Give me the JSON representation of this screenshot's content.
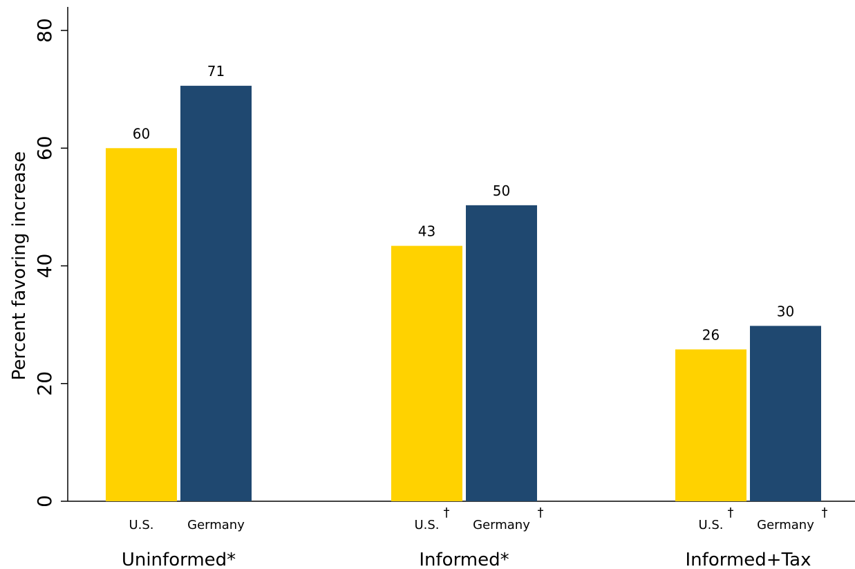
{
  "chart_data": {
    "type": "bar",
    "ylabel": "Percent favoring increase",
    "ylim": [
      0,
      84
    ],
    "yticks": [
      0,
      20,
      40,
      60,
      80
    ],
    "grid": false,
    "legend": "none",
    "groups": [
      {
        "label": "Uninformed*",
        "bars": [
          {
            "label": "U.S.",
            "dagger": "",
            "value": 60,
            "value_label": "60"
          },
          {
            "label": "Germany",
            "dagger": "",
            "value": 70.6,
            "value_label": "71"
          }
        ]
      },
      {
        "label": "Informed*",
        "bars": [
          {
            "label": "U.S.",
            "dagger": "†",
            "value": 43.4,
            "value_label": "43"
          },
          {
            "label": "Germany",
            "dagger": "†",
            "value": 50.3,
            "value_label": "50"
          }
        ]
      },
      {
        "label": "Informed+Tax",
        "bars": [
          {
            "label": "U.S.",
            "dagger": "†",
            "value": 25.8,
            "value_label": "26"
          },
          {
            "label": "Germany",
            "dagger": "†",
            "value": 29.8,
            "value_label": "30"
          }
        ]
      }
    ],
    "colors": {
      "U.S.": "#FFD200",
      "Germany": "#1F4870"
    }
  }
}
